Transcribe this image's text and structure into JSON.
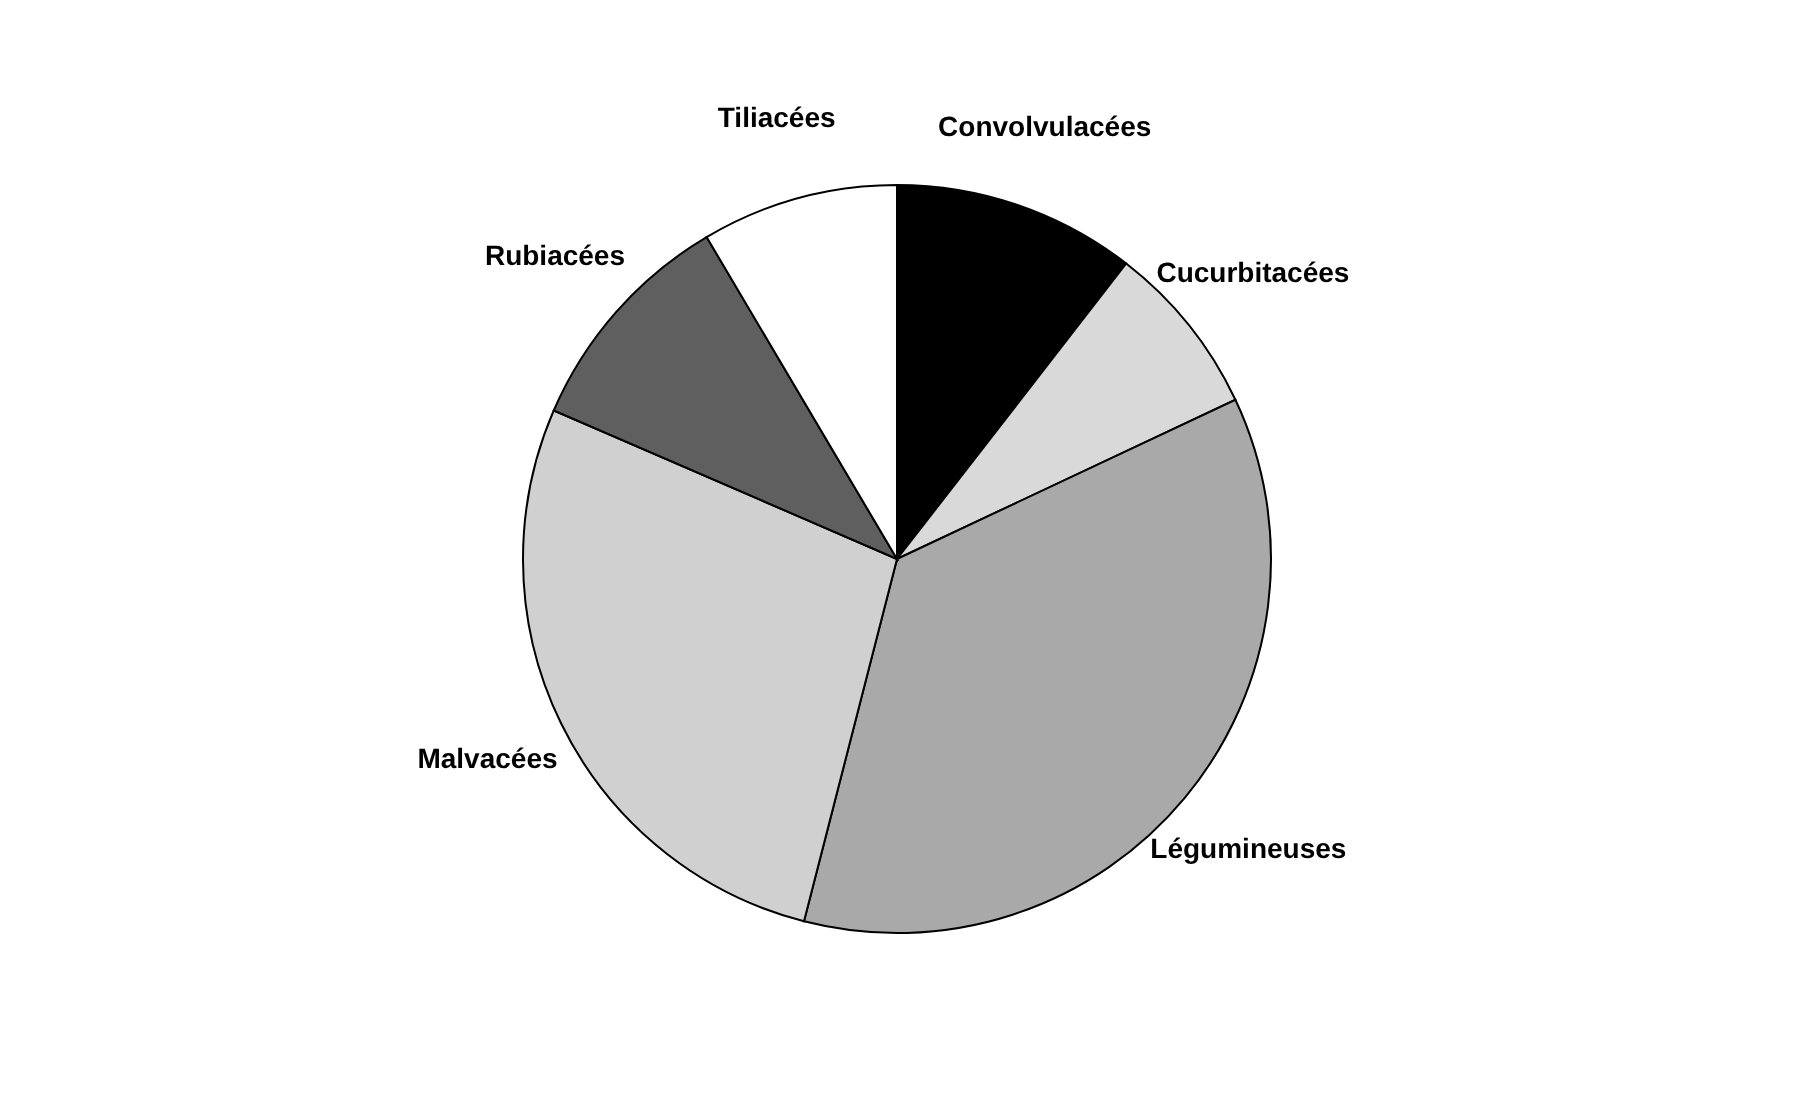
{
  "chart_data": {
    "type": "pie",
    "categories": [
      "Convolvulacées",
      "Cucurbitacées",
      "Légumineuses",
      "Malvacées",
      "Rubiacées",
      "Tiliacées"
    ],
    "values": [
      10.5,
      7.5,
      36,
      27.5,
      10,
      8.5
    ],
    "colors": [
      "#000000",
      "#d9d9d9",
      "#a9a9a9",
      "#d0d0d0",
      "#5f5f5f",
      "#ffffff"
    ],
    "legend": false
  }
}
